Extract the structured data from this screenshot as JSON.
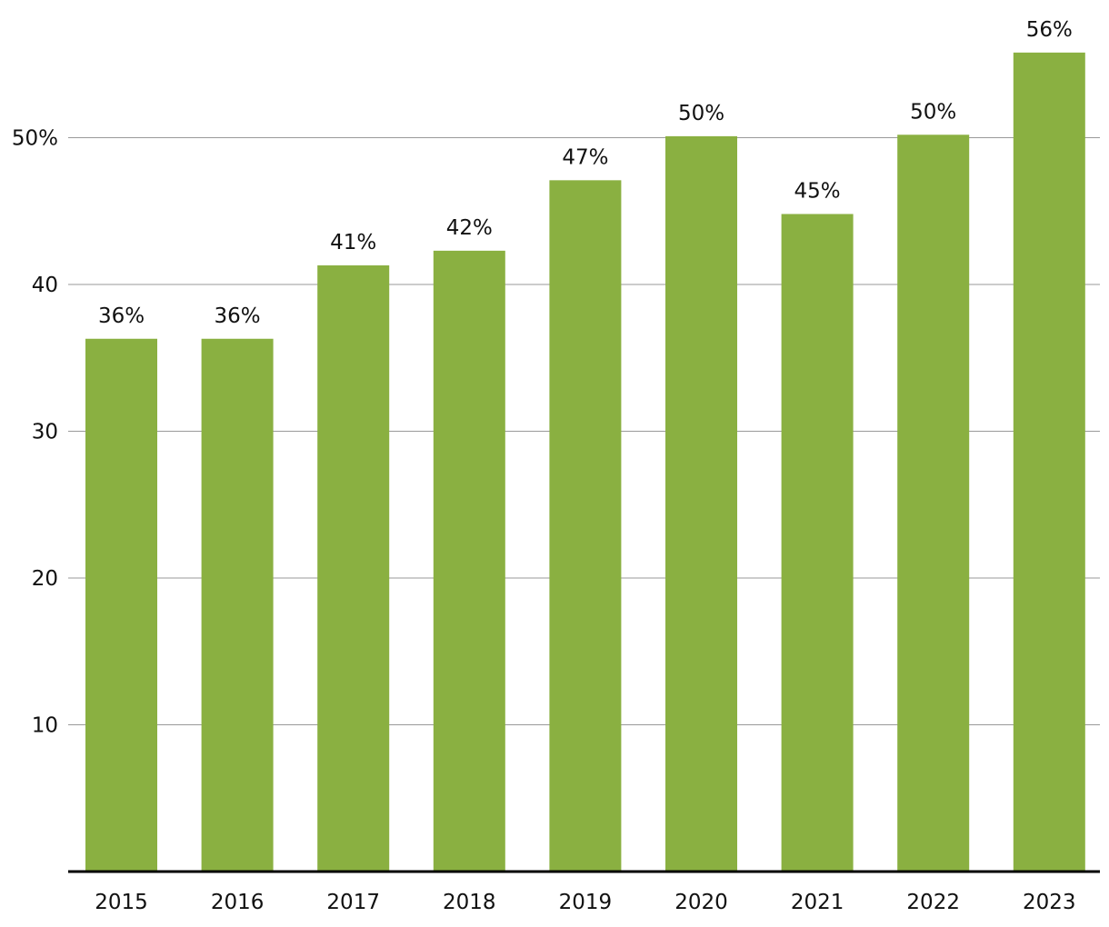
{
  "chart_data": {
    "type": "bar",
    "title": "",
    "xlabel": "",
    "ylabel": "",
    "categories": [
      "2015",
      "2016",
      "2017",
      "2018",
      "2019",
      "2020",
      "2021",
      "2022",
      "2023"
    ],
    "values": [
      36.3,
      36.3,
      41.3,
      42.3,
      47.1,
      50.1,
      44.8,
      50.2,
      55.8
    ],
    "data_labels": [
      "36%",
      "36%",
      "41%",
      "42%",
      "47%",
      "50%",
      "45%",
      "50%",
      "56%"
    ],
    "ylim": [
      0,
      57
    ],
    "yticks": [
      10,
      20,
      30,
      40,
      50
    ],
    "ytick_labels": [
      "10",
      "20",
      "30",
      "40",
      "50%"
    ],
    "grid": true,
    "legend": "none",
    "colors": {
      "bar": "#8ab041",
      "grid": "#999999",
      "axis": "#000000"
    }
  }
}
